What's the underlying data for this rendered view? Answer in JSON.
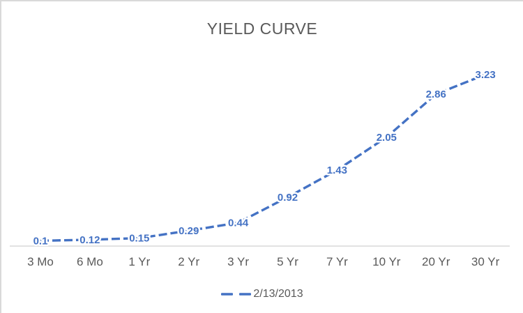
{
  "chart_data": {
    "type": "line",
    "title": "YIELD CURVE",
    "categories": [
      "3 Mo",
      "6 Mo",
      "1 Yr",
      "2 Yr",
      "3 Yr",
      "5 Yr",
      "7 Yr",
      "10 Yr",
      "20 Yr",
      "30 Yr"
    ],
    "series": [
      {
        "name": "2/13/2013",
        "values": [
          0.1,
          0.12,
          0.15,
          0.29,
          0.44,
          0.92,
          1.43,
          2.05,
          2.86,
          3.23
        ],
        "color": "#4472C4",
        "line_style": "dashed",
        "markers": false,
        "data_labels": true
      }
    ],
    "xlabel": "",
    "ylabel": "",
    "ylim": [
      0,
      3.5
    ],
    "grid": false,
    "y_axis_visible": false,
    "legend_position": "bottom",
    "colors": {
      "series": "#4472C4",
      "text": "#595959",
      "axis_line": "#D9D9D9",
      "border": "#D9D9D9",
      "background": "#FFFFFF"
    }
  }
}
